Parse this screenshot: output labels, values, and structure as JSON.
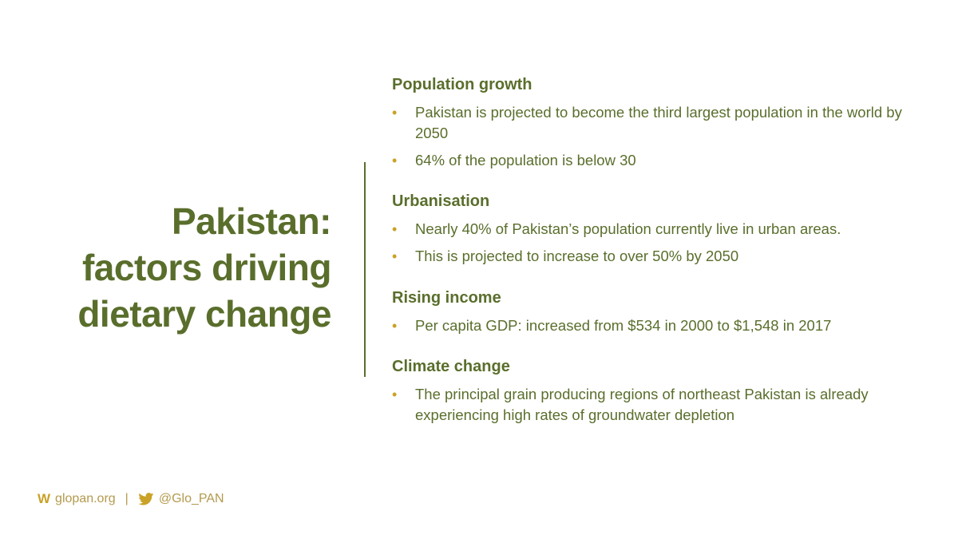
{
  "title": {
    "lines": [
      "Pakistan:",
      "factors driving",
      "dietary change"
    ]
  },
  "sections": [
    {
      "heading": "Population growth",
      "bullets": [
        "Pakistan is projected to become the third largest population in the world by 2050",
        "64% of the population is below 30"
      ]
    },
    {
      "heading": "Urbanisation",
      "bullets": [
        "Nearly 40% of Pakistan’s population currently live in urban areas.",
        "This is projected to increase to over 50% by 2050"
      ]
    },
    {
      "heading": "Rising income",
      "bullets": [
        "Per capita GDP: increased from $534 in 2000 to $1,548 in 2017"
      ]
    },
    {
      "heading": "Climate change",
      "bullets": [
        "The principal grain producing regions of northeast Pakistan is already experiencing high rates of groundwater depletion"
      ]
    }
  ],
  "footer": {
    "logo_letter": "W",
    "website": "glopan.org",
    "separator": "|",
    "twitter_handle": "@Glo_PAN"
  },
  "bullet_symbol": "•",
  "colors": {
    "primary_green": "#5a6e2c",
    "accent_gold": "#c9a227"
  },
  "icons": {
    "twitter": "twitter-bird-icon"
  }
}
